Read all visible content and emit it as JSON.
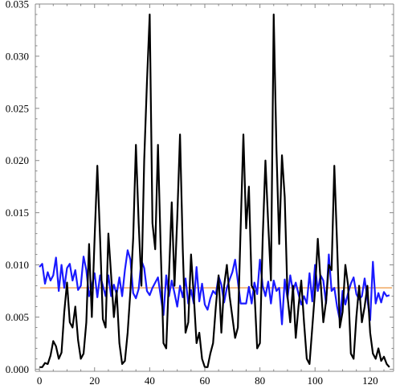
{
  "chart_data": {
    "type": "line",
    "title": "",
    "xlabel": "",
    "ylabel": "",
    "xlim": [
      -1.5,
      128.5
    ],
    "ylim": [
      -0.0002,
      0.035
    ],
    "x_ticks": [
      "0",
      "20",
      "40",
      "60",
      "80",
      "100",
      "120"
    ],
    "y_ticks": [
      "0.000",
      "0.005",
      "0.010",
      "0.015",
      "0.020",
      "0.025",
      "0.030",
      "0.035"
    ],
    "x_tick_values": [
      0,
      20,
      40,
      60,
      80,
      100,
      120
    ],
    "y_tick_values": [
      0,
      0.005,
      0.01,
      0.015,
      0.02,
      0.025,
      0.03,
      0.035
    ],
    "grid": false,
    "colors": {
      "black_series": "#000000",
      "blue_series": "#1a1aff",
      "reference_line": "#f0a860"
    },
    "reference_y": 0.0078,
    "series": [
      {
        "color": "#000000",
        "x": [
          0,
          1,
          2,
          3,
          4,
          5,
          6,
          7,
          8,
          9,
          10,
          11,
          12,
          13,
          14,
          15,
          16,
          17,
          18,
          19,
          20,
          21,
          22,
          23,
          24,
          25,
          26,
          27,
          28,
          29,
          30,
          31,
          32,
          33,
          34,
          35,
          36,
          37,
          38,
          39,
          40,
          41,
          42,
          43,
          44,
          45,
          46,
          47,
          48,
          49,
          50,
          51,
          52,
          53,
          54,
          55,
          56,
          57,
          58,
          59,
          60,
          61,
          62,
          63,
          64,
          65,
          66,
          67,
          68,
          69,
          70,
          71,
          72,
          73,
          74,
          75,
          76,
          77,
          78,
          79,
          80,
          81,
          82,
          83,
          84,
          85,
          86,
          87,
          88,
          89,
          90,
          91,
          92,
          93,
          94,
          95,
          96,
          97,
          98,
          99,
          100,
          101,
          102,
          103,
          104,
          105,
          106,
          107,
          108,
          109,
          110,
          111,
          112,
          113,
          114,
          115,
          116,
          117,
          118,
          119,
          120,
          121,
          122,
          123,
          124,
          125,
          126,
          127
        ],
        "values": [
          0.0002,
          0.0002,
          0.0006,
          0.0005,
          0.0013,
          0.0027,
          0.0022,
          0.001,
          0.0016,
          0.0055,
          0.0083,
          0.0045,
          0.004,
          0.006,
          0.0028,
          0.001,
          0.0015,
          0.0045,
          0.012,
          0.005,
          0.0125,
          0.0195,
          0.0125,
          0.0048,
          0.004,
          0.013,
          0.009,
          0.005,
          0.0075,
          0.0025,
          0.0005,
          0.0008,
          0.0035,
          0.0075,
          0.0125,
          0.0215,
          0.014,
          0.008,
          0.02,
          0.0275,
          0.034,
          0.014,
          0.0115,
          0.0215,
          0.0115,
          0.0025,
          0.002,
          0.009,
          0.016,
          0.008,
          0.0145,
          0.0225,
          0.0115,
          0.0035,
          0.0045,
          0.011,
          0.007,
          0.0025,
          0.0035,
          0.001,
          0.0002,
          0.0002,
          0.0015,
          0.0025,
          0.006,
          0.009,
          0.0035,
          0.008,
          0.01,
          0.007,
          0.005,
          0.003,
          0.004,
          0.0135,
          0.0225,
          0.0135,
          0.0175,
          0.008,
          0.0075,
          0.002,
          0.0025,
          0.0125,
          0.02,
          0.014,
          0.0085,
          0.034,
          0.021,
          0.012,
          0.0205,
          0.0165,
          0.007,
          0.0045,
          0.008,
          0.003,
          0.006,
          0.0085,
          0.0045,
          0.001,
          0.0005,
          0.004,
          0.0075,
          0.0125,
          0.0085,
          0.0045,
          0.0065,
          0.01,
          0.0095,
          0.0195,
          0.012,
          0.004,
          0.0055,
          0.01,
          0.008,
          0.0015,
          0.001,
          0.005,
          0.008,
          0.0045,
          0.006,
          0.008,
          0.0035,
          0.0015,
          0.001,
          0.002,
          0.0008,
          0.0012,
          0.0005,
          0.0002
        ]
      },
      {
        "color": "#1a1aff",
        "x": [
          0,
          1,
          2,
          3,
          4,
          5,
          6,
          7,
          8,
          9,
          10,
          11,
          12,
          13,
          14,
          15,
          16,
          17,
          18,
          19,
          20,
          21,
          22,
          23,
          24,
          25,
          26,
          27,
          28,
          29,
          30,
          31,
          32,
          33,
          34,
          35,
          36,
          37,
          38,
          39,
          40,
          41,
          42,
          43,
          44,
          45,
          46,
          47,
          48,
          49,
          50,
          51,
          52,
          53,
          54,
          55,
          56,
          57,
          58,
          59,
          60,
          61,
          62,
          63,
          64,
          65,
          66,
          67,
          68,
          69,
          70,
          71,
          72,
          73,
          74,
          75,
          76,
          77,
          78,
          79,
          80,
          81,
          82,
          83,
          84,
          85,
          86,
          87,
          88,
          89,
          90,
          91,
          92,
          93,
          94,
          95,
          96,
          97,
          98,
          99,
          100,
          101,
          102,
          103,
          104,
          105,
          106,
          107,
          108,
          109,
          110,
          111,
          112,
          113,
          114,
          115,
          116,
          117,
          118,
          119,
          120,
          121,
          122,
          123,
          124,
          125,
          126,
          127
        ],
        "values": [
          0.0098,
          0.0101,
          0.0082,
          0.0093,
          0.0085,
          0.009,
          0.0107,
          0.0075,
          0.01,
          0.0078,
          0.0097,
          0.0101,
          0.0085,
          0.0095,
          0.0076,
          0.008,
          0.0108,
          0.0095,
          0.007,
          0.008,
          0.0092,
          0.0069,
          0.009,
          0.008,
          0.007,
          0.009,
          0.007,
          0.0081,
          0.0072,
          0.0088,
          0.007,
          0.0095,
          0.0114,
          0.0105,
          0.0073,
          0.0068,
          0.0077,
          0.0104,
          0.0097,
          0.0075,
          0.0071,
          0.0078,
          0.0083,
          0.0088,
          0.007,
          0.0052,
          0.009,
          0.007,
          0.0085,
          0.0073,
          0.006,
          0.008,
          0.0069,
          0.0087,
          0.0063,
          0.0076,
          0.0063,
          0.0098,
          0.0065,
          0.0082,
          0.0062,
          0.0057,
          0.0068,
          0.0075,
          0.0072,
          0.0089,
          0.0081,
          0.0064,
          0.0078,
          0.0086,
          0.0093,
          0.0105,
          0.0084,
          0.0063,
          0.0063,
          0.0063,
          0.0079,
          0.0063,
          0.0083,
          0.0072,
          0.0105,
          0.008,
          0.007,
          0.0084,
          0.0063,
          0.0085,
          0.0075,
          0.0078,
          0.0043,
          0.0086,
          0.0068,
          0.009,
          0.0075,
          0.0083,
          0.0072,
          0.0062,
          0.007,
          0.0063,
          0.0092,
          0.0065,
          0.01,
          0.0075,
          0.009,
          0.0085,
          0.0063,
          0.011,
          0.0075,
          0.0078,
          0.006,
          0.0047,
          0.0075,
          0.0062,
          0.0073,
          0.0082,
          0.0088,
          0.0072,
          0.0067,
          0.007,
          0.0087,
          0.0067,
          0.0047,
          0.0103,
          0.0063,
          0.0073,
          0.0064,
          0.0074,
          0.007,
          0.0071
        ]
      }
    ]
  }
}
